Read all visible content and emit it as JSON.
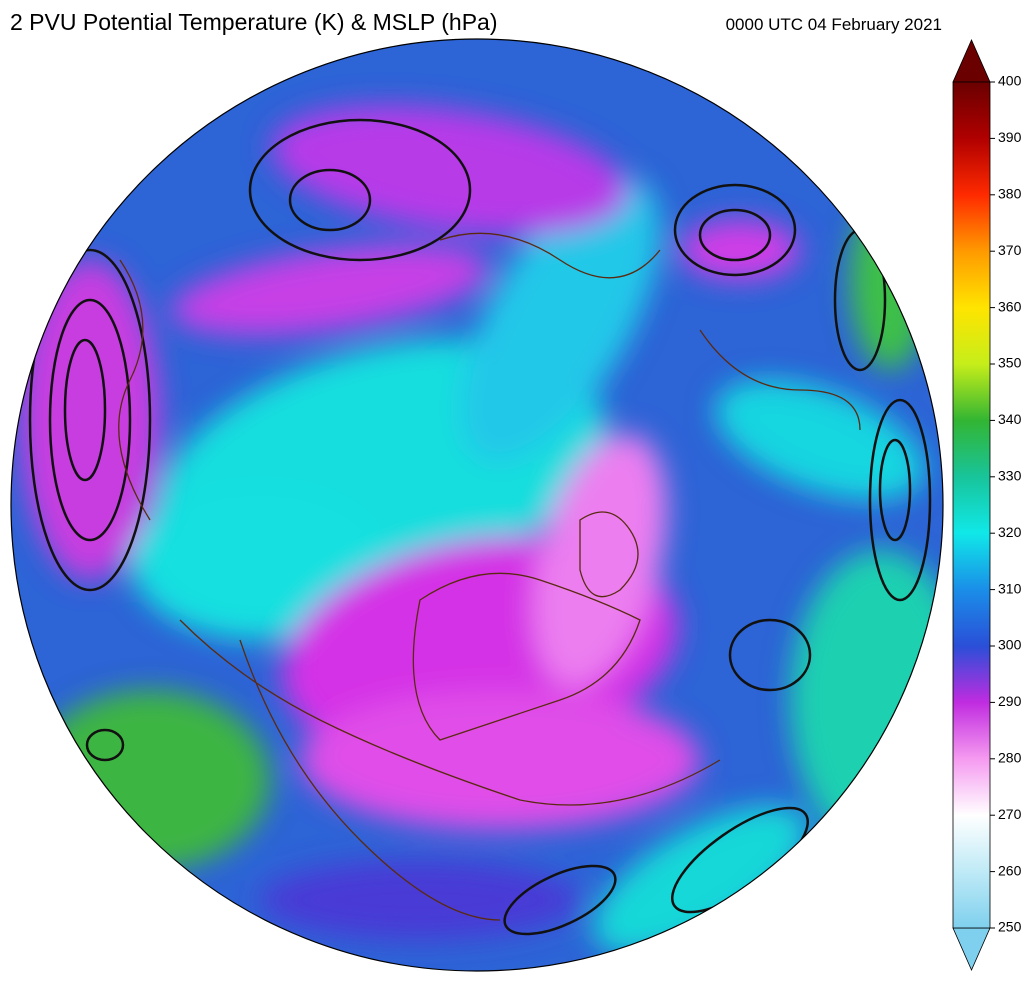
{
  "title": "2 PVU Potential Temperature (K) & MSLP (hPa)",
  "valid_time": "0000 UTC 04 February 2021",
  "colorbar": {
    "lim": [
      250,
      400
    ],
    "ticks": [
      250,
      260,
      270,
      280,
      290,
      300,
      310,
      320,
      330,
      340,
      350,
      360,
      370,
      380,
      390,
      400
    ],
    "colors": [
      "#7fd0ee",
      "#bfeaf6",
      "#ffffff",
      "#f59af0",
      "#c02ce0",
      "#2a4fd8",
      "#1a8ee8",
      "#10e8e8",
      "#18c49a",
      "#33b533",
      "#c6ee1a",
      "#ffe400",
      "#ff9a00",
      "#ff2a00",
      "#b00000",
      "#6a0000"
    ]
  }
}
